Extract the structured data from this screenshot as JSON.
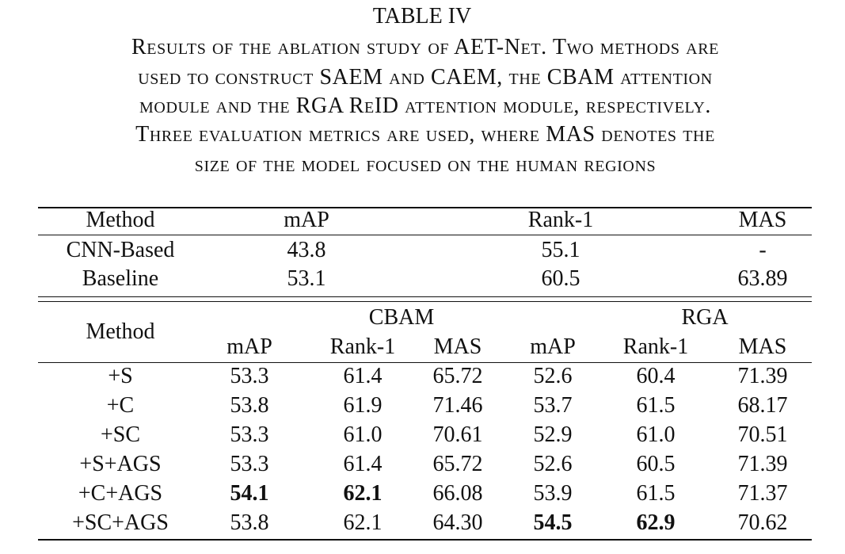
{
  "title": "TABLE IV",
  "caption": [
    "Results of the ablation study of AET-Net. Two methods are",
    "used to construct SAEM and CAEM, the CBAM attention",
    "module and the RGA ReID attention module, respectively.",
    "Three evaluation metrics are used, where MAS denotes the",
    "size of the model focused on the human regions"
  ],
  "table1": {
    "header": [
      "Method",
      "mAP",
      "Rank-1",
      "MAS"
    ],
    "rows": [
      [
        "CNN-Based",
        "43.8",
        "55.1",
        "-"
      ],
      [
        "Baseline",
        "53.1",
        "60.5",
        "63.89"
      ]
    ]
  },
  "table2": {
    "header": {
      "method": "Method",
      "groups": [
        "CBAM",
        "RGA"
      ],
      "columns": [
        "mAP",
        "Rank-1",
        "MAS",
        "mAP",
        "Rank-1",
        "MAS"
      ]
    },
    "rows": [
      [
        "+S",
        "53.3",
        "61.4",
        "65.72",
        "52.6",
        "60.4",
        "71.39"
      ],
      [
        "+C",
        "53.8",
        "61.9",
        "71.46",
        "53.7",
        "61.5",
        "68.17"
      ],
      [
        "+SC",
        "53.3",
        "61.0",
        "70.61",
        "52.9",
        "61.0",
        "70.51"
      ],
      [
        "+S+AGS",
        "53.3",
        "61.4",
        "65.72",
        "52.6",
        "60.5",
        "71.39"
      ],
      [
        "+C+AGS",
        "54.1",
        "62.1",
        "66.08",
        "53.9",
        "61.5",
        "71.37"
      ],
      [
        "+SC+AGS",
        "53.8",
        "62.1",
        "64.30",
        "54.5",
        "62.9",
        "70.62"
      ]
    ]
  }
}
